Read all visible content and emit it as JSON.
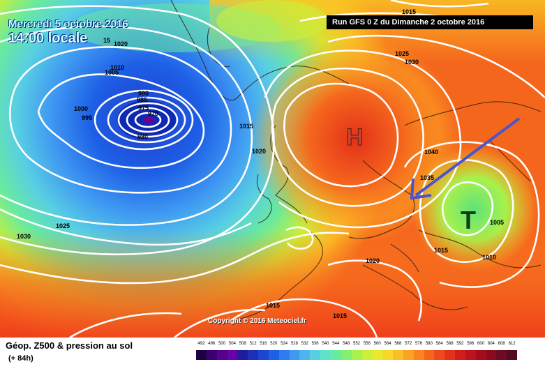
{
  "header": {
    "date": "Mercredi 5 octobre 2016",
    "time": "14:00 locale",
    "run": "Run GFS 0 Z du Dimanche 2 octobre 2016"
  },
  "map": {
    "labels": {
      "h_center": "H",
      "t_center": "T"
    },
    "isobars": [
      {
        "label": "1020",
        "xy": [
          163,
          66
        ]
      },
      {
        "label": "15",
        "xy": [
          148,
          61
        ]
      },
      {
        "label": "1010",
        "xy": [
          158,
          100
        ]
      },
      {
        "label": "1005",
        "xy": [
          150,
          107
        ]
      },
      {
        "label": "1000",
        "xy": [
          106,
          159
        ]
      },
      {
        "label": "995",
        "xy": [
          117,
          172
        ]
      },
      {
        "label": "990",
        "xy": [
          198,
          137
        ]
      },
      {
        "label": "985",
        "xy": [
          196,
          146
        ]
      },
      {
        "label": "975",
        "xy": [
          198,
          158
        ]
      },
      {
        "label": "970",
        "xy": [
          212,
          166
        ]
      },
      {
        "label": "980",
        "xy": [
          197,
          199
        ]
      },
      {
        "label": "1015",
        "xy": [
          343,
          184
        ]
      },
      {
        "label": "1020",
        "xy": [
          361,
          220
        ]
      },
      {
        "label": "1025",
        "xy": [
          566,
          80
        ]
      },
      {
        "label": "1030",
        "xy": [
          580,
          92
        ]
      },
      {
        "label": "1015",
        "xy": [
          576,
          20
        ]
      },
      {
        "label": "1010",
        "xy": [
          550,
          42
        ]
      },
      {
        "label": "1040",
        "xy": [
          608,
          221
        ]
      },
      {
        "label": "1035",
        "xy": [
          602,
          258
        ]
      },
      {
        "label": "1025",
        "xy": [
          80,
          327
        ]
      },
      {
        "label": "1030",
        "xy": [
          24,
          342
        ]
      },
      {
        "label": "1020",
        "xy": [
          524,
          377
        ]
      },
      {
        "label": "1015",
        "xy": [
          622,
          362
        ]
      },
      {
        "label": "1010",
        "xy": [
          691,
          372
        ]
      },
      {
        "label": "1005",
        "xy": [
          702,
          322
        ]
      },
      {
        "label": "1015",
        "xy": [
          381,
          441
        ]
      },
      {
        "label": "1015",
        "xy": [
          477,
          456
        ]
      }
    ],
    "copyright": "Copyright © 2016 Meteociel.fr"
  },
  "legend": {
    "title": "Géop. Z500 & pression au sol",
    "lead": "(+ 84h)",
    "ticks": [
      "492",
      "496",
      "500",
      "504",
      "508",
      "512",
      "516",
      "520",
      "524",
      "528",
      "532",
      "536",
      "540",
      "544",
      "548",
      "552",
      "556",
      "560",
      "564",
      "568",
      "572",
      "576",
      "580",
      "584",
      "588",
      "592",
      "596",
      "600",
      "604",
      "608",
      "612"
    ],
    "colors": [
      "#1f0043",
      "#3b0070",
      "#55008f",
      "#6a00a8",
      "#1e1e9c",
      "#1d2fb8",
      "#1b46d2",
      "#1d5fe6",
      "#2f7cf0",
      "#3f98f2",
      "#4eb4ee",
      "#58cfe3",
      "#5fe2c8",
      "#69ea9d",
      "#84ef6f",
      "#a7f24c",
      "#c9f03a",
      "#e6ea2f",
      "#f7d82a",
      "#fbbf26",
      "#fba223",
      "#f98420",
      "#f5661d",
      "#ef4a1b",
      "#e33119",
      "#d11d1a",
      "#bc121b",
      "#a40c1e",
      "#8b0a22",
      "#6f0a24",
      "#540a24"
    ]
  }
}
